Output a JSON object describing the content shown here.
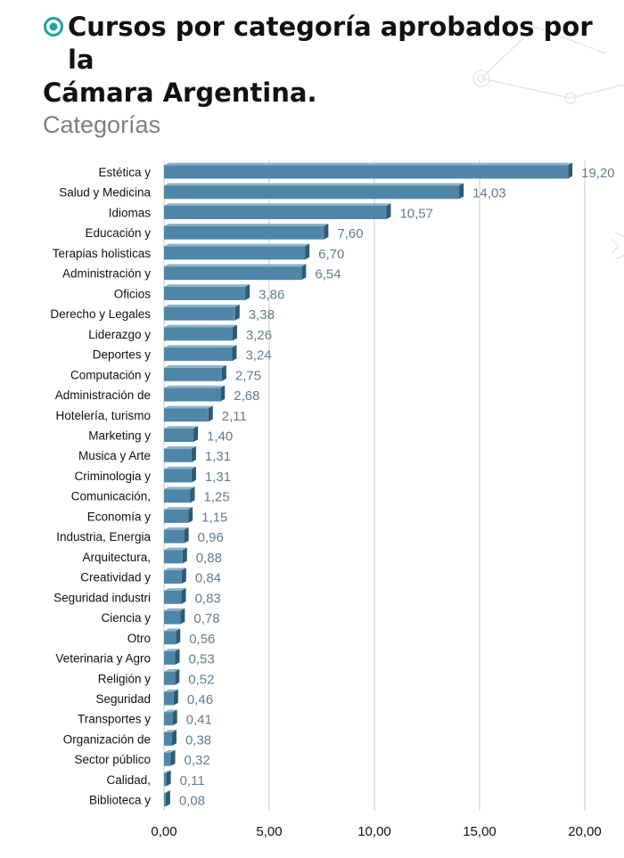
{
  "slide": {
    "title_line1": "Cursos por categoría aprobados por la",
    "title_line2": "Cámara Argentina."
  },
  "colors": {
    "bar_front": "#4f86a8",
    "bar_top": "#8db4cc",
    "bar_side": "#2f5a75",
    "value_label": "#5f7f93",
    "title_bullet": "#1fa39a",
    "gridline": "#c8c8c8"
  },
  "chart_data": {
    "type": "bar",
    "orientation": "horizontal",
    "style": "3d",
    "title": "Categorías",
    "xlabel": "",
    "ylabel": "",
    "xlim": [
      0,
      20
    ],
    "xticks": [
      "0,00",
      "5,00",
      "10,00",
      "15,00",
      "20,00"
    ],
    "grid": true,
    "legend": "none",
    "categories": [
      "Estética y",
      "Salud y Medicina",
      "Idiomas",
      "Educación y",
      "Terapias holisticas",
      "Administración y",
      "Oficios",
      "Derecho y Legales",
      "Liderazgo y",
      "Deportes y",
      "Computación y",
      "Administración de",
      "Hotelería, turismo",
      "Marketing y",
      "Musica y Arte",
      "Criminologia y",
      "Comunicación,",
      "Economía y",
      "Industria, Energia",
      "Arquitectura,",
      "Creatividad y",
      "Seguridad industri",
      "Ciencia y",
      "Otro",
      "Veterinaria y Agro",
      "Religión y",
      "Seguridad",
      "Transportes y",
      "Organización de",
      "Sector público",
      "Calidad,",
      "Biblioteca y"
    ],
    "values": [
      19.2,
      14.03,
      10.57,
      7.6,
      6.7,
      6.54,
      3.86,
      3.38,
      3.26,
      3.24,
      2.75,
      2.68,
      2.11,
      1.4,
      1.31,
      1.31,
      1.25,
      1.15,
      0.96,
      0.88,
      0.84,
      0.83,
      0.78,
      0.56,
      0.53,
      0.52,
      0.46,
      0.41,
      0.38,
      0.32,
      0.11,
      0.08
    ],
    "value_labels": [
      "19,20",
      "14,03",
      "10,57",
      "7,60",
      "6,70",
      "6,54",
      "3,86",
      "3,38",
      "3,26",
      "3,24",
      "2,75",
      "2,68",
      "2,11",
      "1,40",
      "1,31",
      "1,31",
      "1,25",
      "1,15",
      "0,96",
      "0,88",
      "0,84",
      "0,83",
      "0,78",
      "0,56",
      "0,53",
      "0,52",
      "0,46",
      "0,41",
      "0,38",
      "0,32",
      "0,11",
      "0,08"
    ]
  }
}
